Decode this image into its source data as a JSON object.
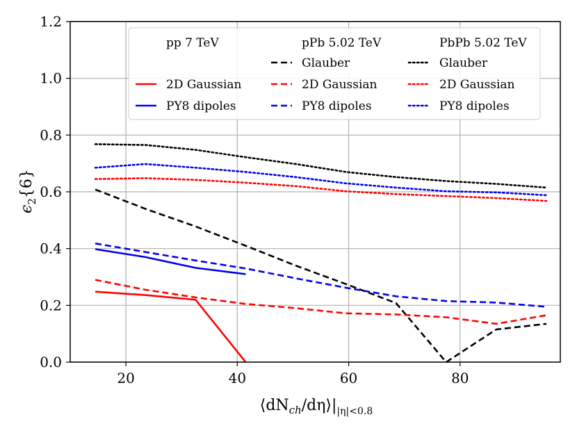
{
  "chart_data": {
    "type": "line",
    "title": "",
    "xlabel": "⟨dN",
    "xlabel_sub": "ch",
    "xlabel_mid": "/dη⟩|",
    "xlabel_sub2": "|η|<0.8",
    "ylabel": "ϵ",
    "ylabel_sub": "2",
    "ylabel_tail": "{6}",
    "xlim": [
      10,
      98
    ],
    "ylim": [
      0.0,
      1.2
    ],
    "xticks": [
      20,
      40,
      60,
      80
    ],
    "xtick_labels": [
      "20",
      "40",
      "60",
      "80"
    ],
    "yticks": [
      0.0,
      0.2,
      0.4,
      0.6,
      0.8,
      1.0,
      1.2
    ],
    "ytick_labels": [
      "0.0",
      "0.2",
      "0.4",
      "0.6",
      "0.8",
      "1.0",
      "1.2"
    ],
    "grid": true,
    "legend": {
      "placement": "top-right",
      "columns": [
        {
          "title": "pp 7 TeV",
          "entries": [
            null,
            "2D Gaussian",
            "PY8 dipoles"
          ]
        },
        {
          "title": "pPb 5.02 TeV",
          "entries": [
            "Glauber",
            "2D Gaussian",
            "PY8 dipoles"
          ]
        },
        {
          "title": "PbPb 5.02 TeV",
          "entries": [
            "Glauber",
            "2D Gaussian",
            "PY8 dipoles"
          ]
        }
      ]
    },
    "series": [
      {
        "name": "pp 7 TeV 2D Gaussian",
        "color": "#ff0000",
        "dash": "solid",
        "x": [
          14.5,
          23.5,
          32.5,
          41.5
        ],
        "y": [
          0.248,
          0.236,
          0.22,
          0.0
        ]
      },
      {
        "name": "pp 7 TeV PY8 dipoles",
        "color": "#0000ee",
        "dash": "solid",
        "x": [
          14.5,
          23.5,
          32.5,
          41.5
        ],
        "y": [
          0.398,
          0.37,
          0.332,
          0.31
        ]
      },
      {
        "name": "pPb 5.02 TeV Glauber",
        "color": "#000000",
        "dash": "dashed",
        "x": [
          14.5,
          23.5,
          32.5,
          41.5,
          50.5,
          59.5,
          68.5,
          77.5,
          86.5,
          95.5
        ],
        "y": [
          0.608,
          0.54,
          0.478,
          0.41,
          0.34,
          0.275,
          0.208,
          0.0,
          0.115,
          0.135
        ]
      },
      {
        "name": "pPb 5.02 TeV 2D Gaussian",
        "color": "#ff0000",
        "dash": "dashed",
        "x": [
          14.5,
          23.5,
          32.5,
          41.5,
          50.5,
          59.5,
          68.5,
          77.5,
          86.5,
          95.5
        ],
        "y": [
          0.29,
          0.255,
          0.228,
          0.205,
          0.19,
          0.172,
          0.168,
          0.158,
          0.135,
          0.165
        ]
      },
      {
        "name": "pPb 5.02 TeV PY8 dipoles",
        "color": "#0000ee",
        "dash": "dashed",
        "x": [
          14.5,
          23.5,
          32.5,
          41.5,
          50.5,
          59.5,
          68.5,
          77.5,
          86.5,
          95.5
        ],
        "y": [
          0.418,
          0.388,
          0.358,
          0.33,
          0.295,
          0.262,
          0.232,
          0.215,
          0.21,
          0.195
        ]
      },
      {
        "name": "PbPb 5.02 TeV Glauber",
        "color": "#000000",
        "dash": "dotted",
        "x": [
          14.5,
          23.5,
          32.5,
          41.5,
          50.5,
          59.5,
          68.5,
          77.5,
          86.5,
          95.5
        ],
        "y": [
          0.768,
          0.765,
          0.748,
          0.722,
          0.698,
          0.67,
          0.652,
          0.638,
          0.628,
          0.615
        ]
      },
      {
        "name": "PbPb 5.02 TeV 2D Gaussian",
        "color": "#ff0000",
        "dash": "dotted",
        "x": [
          14.5,
          23.5,
          32.5,
          41.5,
          50.5,
          59.5,
          68.5,
          77.5,
          86.5,
          95.5
        ],
        "y": [
          0.645,
          0.648,
          0.642,
          0.632,
          0.62,
          0.602,
          0.592,
          0.585,
          0.578,
          0.568
        ]
      },
      {
        "name": "PbPb 5.02 TeV PY8 dipoles",
        "color": "#0000ee",
        "dash": "dotted",
        "x": [
          14.5,
          23.5,
          32.5,
          41.5,
          50.5,
          59.5,
          68.5,
          77.5,
          86.5,
          95.5
        ],
        "y": [
          0.685,
          0.698,
          0.685,
          0.67,
          0.652,
          0.63,
          0.615,
          0.602,
          0.598,
          0.588
        ]
      }
    ]
  }
}
